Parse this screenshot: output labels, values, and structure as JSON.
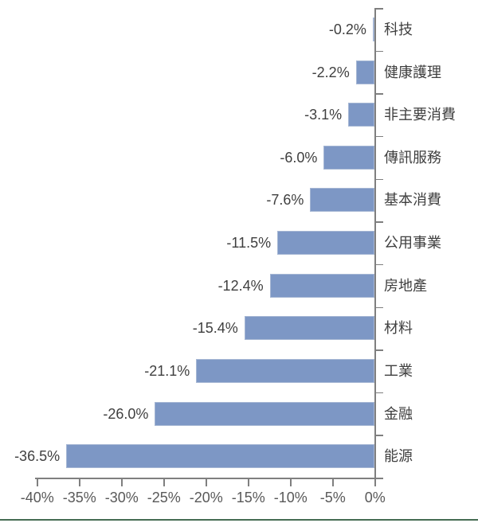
{
  "chart_data": {
    "type": "bar",
    "orientation": "horizontal",
    "title": "",
    "xlabel": "",
    "ylabel": "",
    "categories": [
      "科技",
      "健康護理",
      "非主要消費",
      "傳訊服務",
      "基本消費",
      "公用事業",
      "房地產",
      "材料",
      "工業",
      "金融",
      "能源"
    ],
    "values": [
      -0.2,
      -2.2,
      -3.1,
      -6.0,
      -7.6,
      -11.5,
      -12.4,
      -15.4,
      -21.1,
      -26.0,
      -36.5
    ],
    "value_labels": [
      "-0.2%",
      "-2.2%",
      "-3.1%",
      "-6.0%",
      "-7.6%",
      "-11.5%",
      "-12.4%",
      "-15.4%",
      "-21.1%",
      "-26.0%",
      "-36.5%"
    ],
    "x_axis": {
      "min": -40,
      "max": 0,
      "step": 5,
      "tick_labels": [
        "-40%",
        "-35%",
        "-30%",
        "-25%",
        "-20%",
        "-15%",
        "-10%",
        "-5%",
        "0%"
      ]
    },
    "grid": false,
    "legend": false,
    "colors": {
      "bar_fill": "#7d97c5",
      "bar_border": "#a6b7d4",
      "axis": "#7f7f7f",
      "value_label_text": "#3f3f3f",
      "category_label_text": "#3f3f3f",
      "axis_tick_label_text": "#595959",
      "bottom_accent_line": "#456c52"
    }
  }
}
